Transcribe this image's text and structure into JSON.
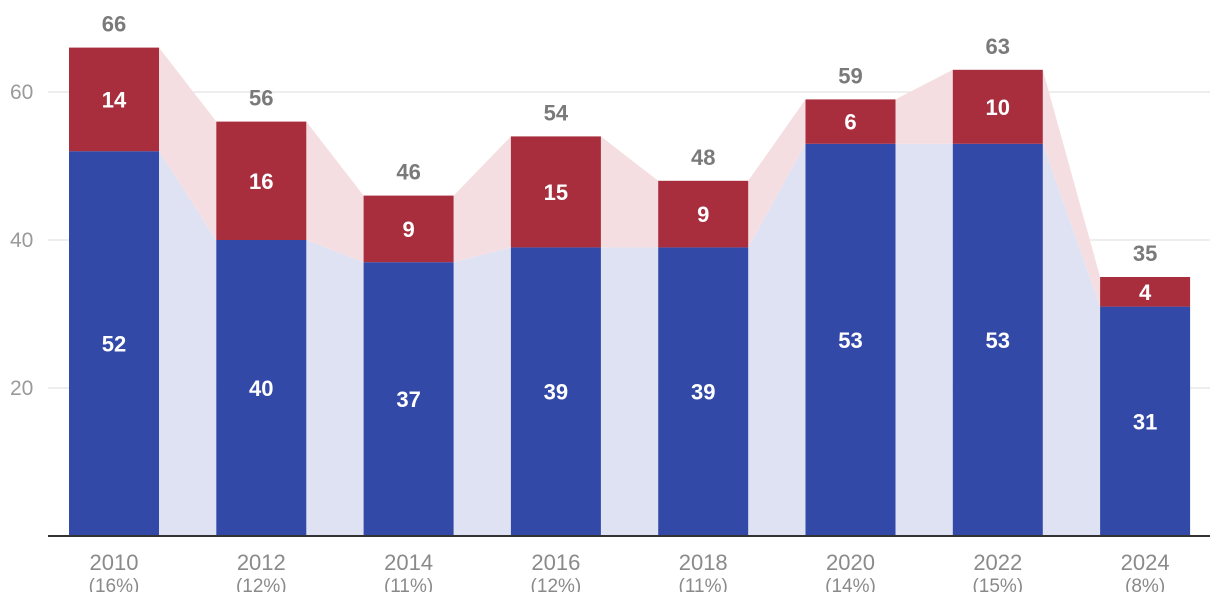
{
  "chart_data": {
    "type": "bar",
    "stacked": true,
    "categories": [
      "2010",
      "2012",
      "2014",
      "2016",
      "2018",
      "2020",
      "2022",
      "2024"
    ],
    "category_sublabels": [
      "(16%)",
      "(12%)",
      "(11%)",
      "(12%)",
      "(11%)",
      "(14%)",
      "(15%)",
      "(8%)"
    ],
    "series": [
      {
        "values": [
          52,
          40,
          37,
          39,
          39,
          53,
          53,
          31
        ],
        "color": "#3349a8",
        "band_color": "#dfe2f3"
      },
      {
        "values": [
          14,
          16,
          9,
          15,
          9,
          6,
          10,
          4
        ],
        "color": "#a82e3e",
        "band_color": "#f5dee1"
      }
    ],
    "totals": [
      66,
      56,
      46,
      54,
      48,
      59,
      63,
      35
    ],
    "yticks": [
      20,
      40,
      60
    ],
    "ylim": [
      0,
      70
    ],
    "grid": true,
    "title": "",
    "xlabel": "",
    "ylabel": ""
  }
}
